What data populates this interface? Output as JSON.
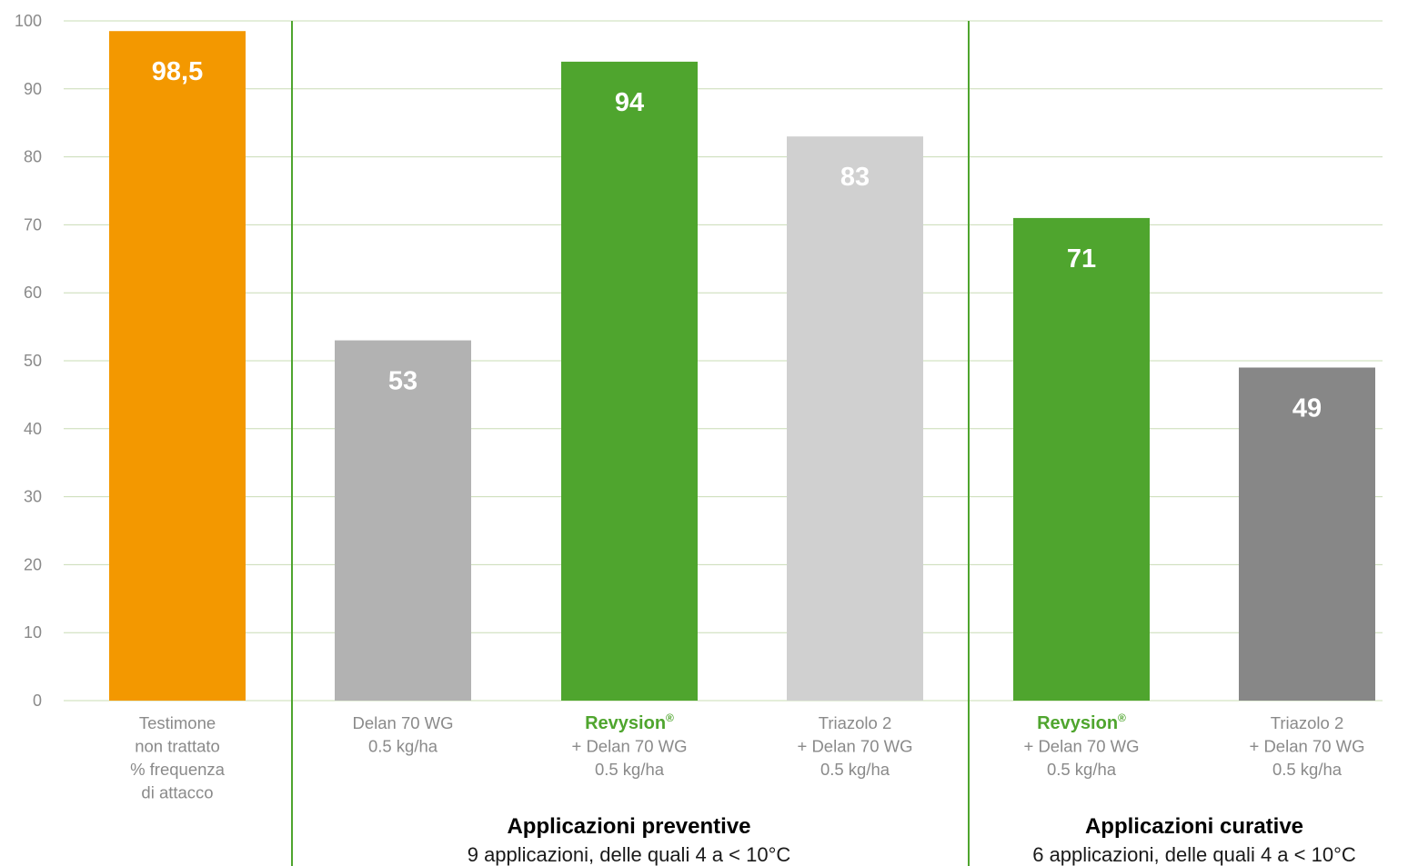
{
  "chart_data": {
    "type": "bar",
    "ylim": [
      0,
      100
    ],
    "yticks": [
      0,
      10,
      20,
      30,
      40,
      50,
      60,
      70,
      80,
      90,
      100
    ],
    "grid": true,
    "colors": {
      "grid": "#c9dcb6",
      "separator": "#4fa52e",
      "tick_text": "#8a8a8a",
      "brand": "#4fa52e"
    },
    "bars": [
      {
        "value": 98.5,
        "label": "98,5",
        "color": "#f39800",
        "lines": [
          "Testimone",
          "non trattato",
          "% frequenza",
          "di attacco"
        ]
      },
      {
        "value": 53,
        "label": "53",
        "color": "#b2b2b2",
        "lines": [
          "Delan 70 WG",
          "0.5 kg/ha"
        ]
      },
      {
        "value": 94,
        "label": "94",
        "color": "#4fa52e",
        "brand": "Revysion",
        "brand_mark": "®",
        "lines": [
          "+ Delan 70 WG",
          "0.5 kg/ha"
        ]
      },
      {
        "value": 83,
        "label": "83",
        "color": "#d0d0d0",
        "lines": [
          "Triazolo 2",
          "+ Delan 70 WG",
          "0.5 kg/ha"
        ]
      },
      {
        "value": 71,
        "label": "71",
        "color": "#4fa52e",
        "brand": "Revysion",
        "brand_mark": "®",
        "lines": [
          "+ Delan 70 WG",
          "0.5 kg/ha"
        ]
      },
      {
        "value": 49,
        "label": "49",
        "color": "#878787",
        "lines": [
          "Triazolo 2",
          "+ Delan 70 WG",
          "0.5 kg/ha"
        ]
      }
    ],
    "groups": [
      {
        "title": "Applicazioni preventive",
        "subtitle": "9 applicazioni, delle quali 4 a < 10°C",
        "bar_indices": [
          1,
          2,
          3
        ]
      },
      {
        "title": "Applicazioni curative",
        "subtitle": "6 applicazioni, delle quali 4 a < 10°C",
        "bar_indices": [
          4,
          5
        ]
      }
    ]
  }
}
